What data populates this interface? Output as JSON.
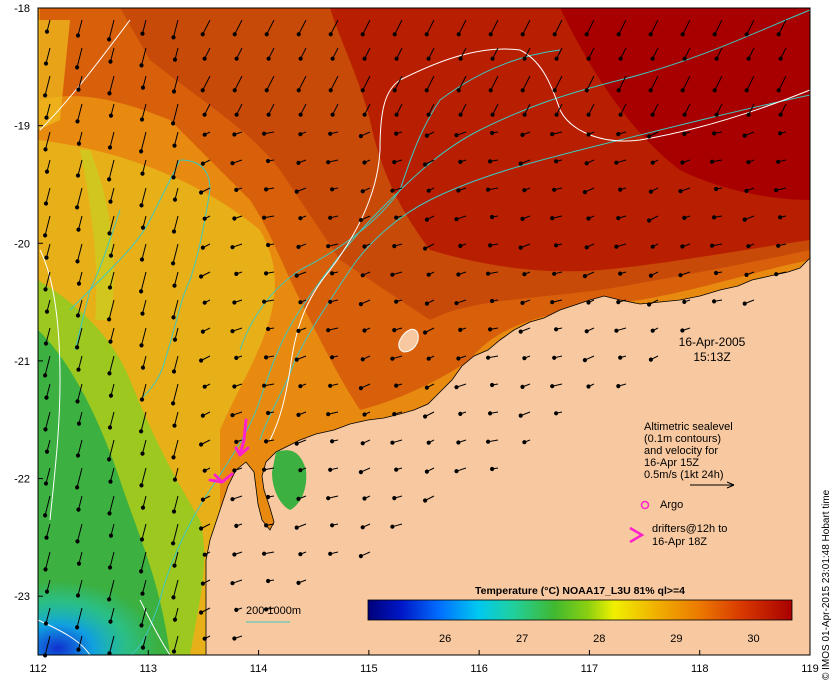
{
  "map": {
    "axes": {
      "lon_min": 112,
      "lon_max": 119,
      "lat_min": -23.5,
      "lat_max": -18,
      "lon_ticks": [
        "112",
        "113",
        "114",
        "115",
        "116",
        "117",
        "118",
        "119"
      ],
      "lat_ticks": [
        "-18",
        "-19",
        "-20",
        "-21",
        "-22",
        "-23"
      ]
    },
    "date": "16-Apr-2005",
    "time": "15:13Z",
    "legend": {
      "sealevel_lines": [
        "Altimetric sealevel",
        "(0.1m contours)",
        "and velocity for",
        "16-Apr 15Z",
        "0.5m/s (1kt 24h)"
      ],
      "argo_label": "Argo",
      "drifter_lines": [
        "drifters@12h to",
        "16-Apr 18Z"
      ],
      "bathy_label": "200  1000m"
    },
    "colorbar": {
      "title": "Temperature (°C) NOAA17_L3U 81% ql>=4",
      "ticks": [
        "26",
        "27",
        "28",
        "29",
        "30"
      ],
      "range": [
        25,
        30.5
      ]
    },
    "credit": "© IMOS 01-Apr-2015 23:01:48 Hobart time",
    "colors": {
      "land": "#f8c9a0",
      "bathy_contour": "#3ec8c0",
      "sealevel_contour": "#ffffff",
      "arrows": "#000000",
      "drifter": "#ff22cc",
      "argo": "#ff22cc"
    }
  }
}
